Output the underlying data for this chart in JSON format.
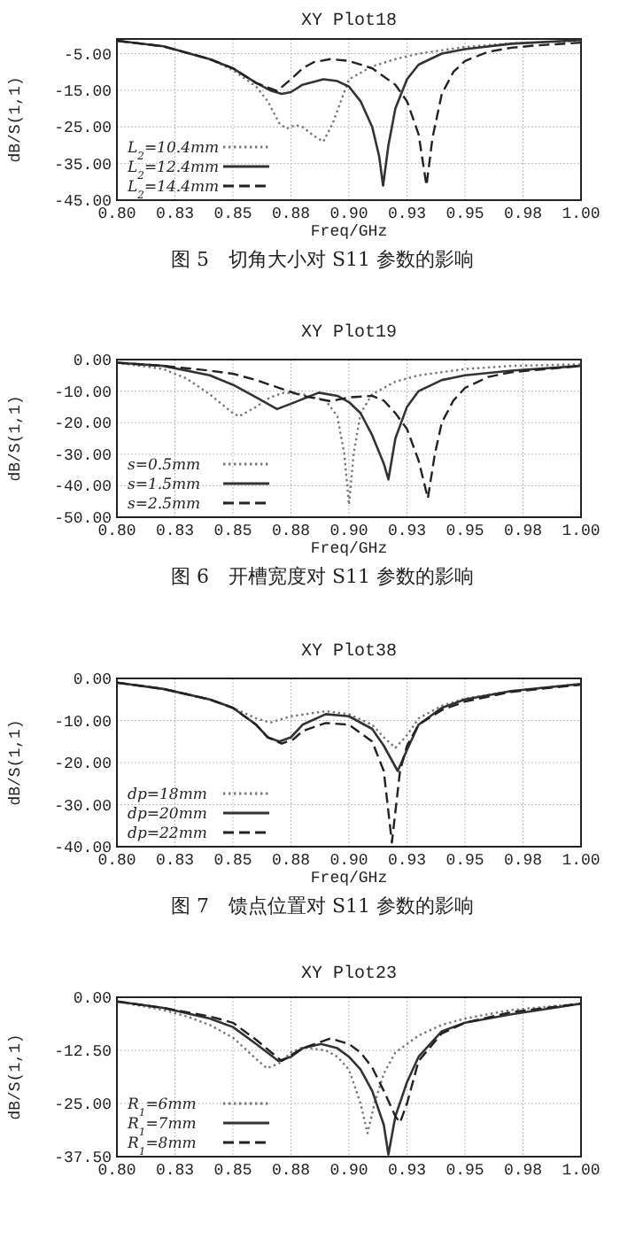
{
  "chart_data": [
    {
      "type": "line",
      "title": "XY Plot18",
      "xlabel": "Freq/GHz",
      "ylabel": "dB/S(1,1)",
      "annotations": [
        "图 5　切角大小对 S11 参数的影响"
      ],
      "xlim": [
        0.8,
        1.0
      ],
      "xticks": [
        {
          "value": 0.8,
          "label": "0.80"
        },
        {
          "value": 0.825,
          "label": "0.83"
        },
        {
          "value": 0.85,
          "label": "0.85"
        },
        {
          "value": 0.875,
          "label": "0.88"
        },
        {
          "value": 0.9,
          "label": "0.90"
        },
        {
          "value": 0.925,
          "label": "0.93"
        },
        {
          "value": 0.95,
          "label": "0.95"
        },
        {
          "value": 0.975,
          "label": "0.98"
        },
        {
          "value": 1.0,
          "label": "1.00"
        }
      ],
      "ylim": [
        -45,
        -1
      ],
      "yticks": [
        {
          "value": -5,
          "label": "-5.00"
        },
        {
          "value": -15,
          "label": "-15.00"
        },
        {
          "value": -25,
          "label": "-25.00"
        },
        {
          "value": -35,
          "label": "-35.00"
        },
        {
          "value": -45,
          "label": "-45.00"
        }
      ],
      "grid": true,
      "legend": "bottom left",
      "series": [
        {
          "name": "L$_{2}$=10.4mm",
          "color": "#777777",
          "line_style": "dotted",
          "x": [
            0.8,
            0.82,
            0.84,
            0.85,
            0.86,
            0.865,
            0.87,
            0.873,
            0.877,
            0.88,
            0.885,
            0.889,
            0.893,
            0.9,
            0.91,
            0.92,
            0.93,
            0.95,
            0.97,
            1.0
          ],
          "values": [
            -1.5,
            -3,
            -6.5,
            -9.5,
            -14,
            -18,
            -24,
            -25.5,
            -24.5,
            -25,
            -27.5,
            -29,
            -24,
            -12,
            -8.5,
            -6.5,
            -5,
            -3.2,
            -2.2,
            -1.5
          ]
        },
        {
          "name": "L$_{2}$=12.4mm",
          "color": "#333333",
          "line_style": "solid",
          "x": [
            0.8,
            0.82,
            0.84,
            0.85,
            0.86,
            0.866,
            0.871,
            0.875,
            0.88,
            0.889,
            0.895,
            0.9,
            0.905,
            0.91,
            0.913,
            0.9147,
            0.917,
            0.92,
            0.925,
            0.93,
            0.94,
            0.95,
            0.97,
            1.0
          ],
          "values": [
            -1.5,
            -3,
            -6.5,
            -9,
            -13,
            -15,
            -16,
            -15.5,
            -13.5,
            -12,
            -12.5,
            -14,
            -18,
            -25,
            -33,
            -41,
            -30,
            -20,
            -12,
            -8,
            -5,
            -3.8,
            -2.3,
            -1.3
          ]
        },
        {
          "name": "L$_{2}$=14.4mm",
          "color": "#222222",
          "line_style": "dashed",
          "x": [
            0.8,
            0.82,
            0.84,
            0.85,
            0.86,
            0.869,
            0.875,
            0.88,
            0.885,
            0.892,
            0.9,
            0.91,
            0.92,
            0.925,
            0.93,
            0.9334,
            0.936,
            0.94,
            0.945,
            0.95,
            0.96,
            0.97,
            0.98,
            1.0
          ],
          "values": [
            -1.5,
            -3,
            -6.5,
            -9,
            -13,
            -15.2,
            -12,
            -9,
            -7.3,
            -6.5,
            -7,
            -9,
            -13.5,
            -18,
            -27,
            -41,
            -28,
            -16,
            -10,
            -7,
            -4.5,
            -3.4,
            -2.8,
            -2
          ]
        }
      ]
    },
    {
      "type": "line",
      "title": "XY Plot19",
      "xlabel": "Freq/GHz",
      "ylabel": "dB/S(1,1)",
      "annotations": [
        "图 6　开槽宽度对 S11 参数的影响"
      ],
      "xlim": [
        0.8,
        1.0
      ],
      "xticks": [
        {
          "value": 0.8,
          "label": "0.80"
        },
        {
          "value": 0.825,
          "label": "0.83"
        },
        {
          "value": 0.85,
          "label": "0.85"
        },
        {
          "value": 0.875,
          "label": "0.88"
        },
        {
          "value": 0.9,
          "label": "0.90"
        },
        {
          "value": 0.925,
          "label": "0.93"
        },
        {
          "value": 0.95,
          "label": "0.95"
        },
        {
          "value": 0.975,
          "label": "0.98"
        },
        {
          "value": 1.0,
          "label": "1.00"
        }
      ],
      "ylim": [
        -50,
        0
      ],
      "yticks": [
        {
          "value": 0,
          "label": "0.00"
        },
        {
          "value": -10,
          "label": "-10.00"
        },
        {
          "value": -20,
          "label": "-20.00"
        },
        {
          "value": -30,
          "label": "-30.00"
        },
        {
          "value": -40,
          "label": "-40.00"
        },
        {
          "value": -50,
          "label": "-50.00"
        }
      ],
      "grid": true,
      "legend": "bottom left",
      "series": [
        {
          "name": "s=0.5mm",
          "color": "#777777",
          "line_style": "dotted",
          "x": [
            0.8,
            0.82,
            0.83,
            0.84,
            0.85,
            0.8526,
            0.86,
            0.866,
            0.872,
            0.88,
            0.89,
            0.895,
            0.898,
            0.9,
            0.902,
            0.905,
            0.91,
            0.92,
            0.93,
            0.95,
            0.97,
            1.0
          ],
          "values": [
            -1,
            -3,
            -6,
            -11,
            -17,
            -18,
            -15,
            -12,
            -10.5,
            -11,
            -13,
            -18,
            -30,
            -46,
            -30,
            -17,
            -11,
            -7,
            -5,
            -3,
            -2,
            -1.5
          ]
        },
        {
          "name": "s=1.5mm",
          "color": "#333333",
          "line_style": "solid",
          "x": [
            0.8,
            0.82,
            0.84,
            0.85,
            0.86,
            0.869,
            0.875,
            0.887,
            0.895,
            0.9,
            0.905,
            0.91,
            0.915,
            0.917,
            0.92,
            0.925,
            0.93,
            0.94,
            0.95,
            0.97,
            1.0
          ],
          "values": [
            -1,
            -2,
            -5,
            -8,
            -12,
            -15.7,
            -14,
            -10.5,
            -11.5,
            -13.5,
            -17,
            -24,
            -33,
            -38,
            -25,
            -15,
            -10,
            -6.5,
            -5,
            -3.5,
            -2
          ]
        },
        {
          "name": "s=2.5mm",
          "color": "#222222",
          "line_style": "dashed",
          "x": [
            0.8,
            0.82,
            0.84,
            0.85,
            0.86,
            0.87,
            0.88,
            0.892,
            0.9,
            0.91,
            0.915,
            0.92,
            0.925,
            0.93,
            0.934,
            0.937,
            0.94,
            0.945,
            0.95,
            0.96,
            0.97,
            1.0
          ],
          "values": [
            -1,
            -2,
            -3.5,
            -4.5,
            -6.5,
            -9,
            -11.5,
            -13.2,
            -12,
            -11.5,
            -13,
            -17,
            -22,
            -32,
            -44,
            -30,
            -20,
            -13,
            -9,
            -5.5,
            -4,
            -2
          ]
        }
      ]
    },
    {
      "type": "line",
      "title": "XY Plot38",
      "xlabel": "Freq/GHz",
      "ylabel": "dB/S(1,1)",
      "annotations": [
        "图 7　馈点位置对 S11 参数的影响"
      ],
      "xlim": [
        0.8,
        1.0
      ],
      "xticks": [
        {
          "value": 0.8,
          "label": "0.80"
        },
        {
          "value": 0.825,
          "label": "0.83"
        },
        {
          "value": 0.85,
          "label": "0.85"
        },
        {
          "value": 0.875,
          "label": "0.88"
        },
        {
          "value": 0.9,
          "label": "0.90"
        },
        {
          "value": 0.925,
          "label": "0.93"
        },
        {
          "value": 0.95,
          "label": "0.95"
        },
        {
          "value": 0.975,
          "label": "0.98"
        },
        {
          "value": 1.0,
          "label": "1.00"
        }
      ],
      "ylim": [
        -40,
        0
      ],
      "yticks": [
        {
          "value": 0,
          "label": "0.00"
        },
        {
          "value": -10,
          "label": "-10.00"
        },
        {
          "value": -20,
          "label": "-20.00"
        },
        {
          "value": -30,
          "label": "-30.00"
        },
        {
          "value": -40,
          "label": "-40.00"
        }
      ],
      "grid": true,
      "legend": "bottom left",
      "series": [
        {
          "name": "dp=18mm",
          "color": "#777777",
          "line_style": "dotted",
          "x": [
            0.8,
            0.82,
            0.84,
            0.85,
            0.86,
            0.866,
            0.875,
            0.89,
            0.9,
            0.91,
            0.915,
            0.92,
            0.925,
            0.93,
            0.94,
            0.95,
            0.97,
            1.0
          ],
          "values": [
            -1,
            -2.5,
            -5,
            -7,
            -9.5,
            -10.5,
            -9,
            -7.8,
            -8.5,
            -11,
            -14,
            -16.5,
            -13.5,
            -9.5,
            -6.5,
            -4.8,
            -3,
            -1.3
          ]
        },
        {
          "name": "dp=20mm",
          "color": "#333333",
          "line_style": "solid",
          "x": [
            0.8,
            0.82,
            0.84,
            0.85,
            0.86,
            0.865,
            0.87,
            0.875,
            0.88,
            0.89,
            0.9,
            0.91,
            0.915,
            0.921,
            0.925,
            0.93,
            0.94,
            0.95,
            0.97,
            1.0
          ],
          "values": [
            -1,
            -2.5,
            -5,
            -7,
            -11,
            -14,
            -15,
            -14,
            -11,
            -8.5,
            -9,
            -12,
            -16,
            -22,
            -17,
            -11,
            -7,
            -5,
            -3,
            -1.3
          ]
        },
        {
          "name": "dp=22mm",
          "color": "#222222",
          "line_style": "dashed",
          "x": [
            0.8,
            0.82,
            0.84,
            0.85,
            0.86,
            0.865,
            0.871,
            0.876,
            0.88,
            0.89,
            0.9,
            0.91,
            0.915,
            0.9185,
            0.922,
            0.925,
            0.93,
            0.94,
            0.95,
            0.97,
            1.0
          ],
          "values": [
            -1,
            -2.5,
            -5,
            -7,
            -11,
            -14,
            -15.5,
            -14.5,
            -12.5,
            -10.6,
            -11,
            -15,
            -22,
            -39,
            -22,
            -16,
            -11,
            -7.5,
            -5.5,
            -3.2,
            -1.5
          ]
        }
      ]
    },
    {
      "type": "line",
      "title": "XY Plot23",
      "ylabel": "dB/S(1,1)",
      "xlim": [
        0.8,
        1.0
      ],
      "xticks": [
        {
          "value": 0.8,
          "label": "0.80"
        },
        {
          "value": 0.825,
          "label": "0.83"
        },
        {
          "value": 0.85,
          "label": "0.85"
        },
        {
          "value": 0.875,
          "label": "0.88"
        },
        {
          "value": 0.9,
          "label": "0.90"
        },
        {
          "value": 0.925,
          "label": "0.93"
        },
        {
          "value": 0.95,
          "label": "0.95"
        },
        {
          "value": 0.975,
          "label": "0.98"
        },
        {
          "value": 1.0,
          "label": "1.00"
        }
      ],
      "ylim": [
        -37.5,
        0
      ],
      "yticks": [
        {
          "value": 0,
          "label": "0.00"
        },
        {
          "value": -12.5,
          "label": "-12.50"
        },
        {
          "value": -25,
          "label": "-25.00"
        },
        {
          "value": -37.5,
          "label": "-37.50"
        }
      ],
      "grid": true,
      "legend": "bottom left",
      "series": [
        {
          "name": "R$_{1}$=6mm",
          "color": "#777777",
          "line_style": "dotted",
          "x": [
            0.8,
            0.82,
            0.83,
            0.84,
            0.85,
            0.86,
            0.8646,
            0.87,
            0.875,
            0.88,
            0.89,
            0.895,
            0.9,
            0.905,
            0.908,
            0.911,
            0.915,
            0.92,
            0.93,
            0.94,
            0.95,
            0.97,
            1.0
          ],
          "values": [
            -1,
            -3,
            -4.5,
            -6.5,
            -9.5,
            -14.5,
            -16.7,
            -15.5,
            -13,
            -11.8,
            -12.5,
            -14,
            -17,
            -25,
            -32,
            -25,
            -18,
            -13,
            -9,
            -6.5,
            -5,
            -3,
            -1.5
          ]
        },
        {
          "name": "R$_{1}$=7mm",
          "color": "#333333",
          "line_style": "solid",
          "x": [
            0.8,
            0.82,
            0.84,
            0.85,
            0.86,
            0.8696,
            0.875,
            0.88,
            0.888,
            0.895,
            0.9,
            0.905,
            0.91,
            0.915,
            0.917,
            0.92,
            0.925,
            0.93,
            0.94,
            0.95,
            0.97,
            1.0
          ],
          "values": [
            -1,
            -2.5,
            -5,
            -7,
            -11,
            -15,
            -14,
            -12,
            -11,
            -12,
            -14,
            -17,
            -22,
            -30,
            -37,
            -28,
            -20,
            -14,
            -8,
            -6,
            -4,
            -1.5
          ]
        },
        {
          "name": "R$_{1}$=8mm",
          "color": "#222222",
          "line_style": "dashed",
          "x": [
            0.8,
            0.82,
            0.84,
            0.85,
            0.86,
            0.871,
            0.88,
            0.892,
            0.9,
            0.905,
            0.91,
            0.915,
            0.92,
            0.922,
            0.925,
            0.93,
            0.94,
            0.95,
            0.97,
            1.0
          ],
          "values": [
            -1,
            -2.5,
            -4.5,
            -6,
            -10,
            -15,
            -12,
            -9.7,
            -11,
            -13,
            -16.5,
            -22,
            -28,
            -29.5,
            -25,
            -15,
            -8.5,
            -6,
            -3.5,
            -1.5
          ]
        }
      ]
    }
  ]
}
